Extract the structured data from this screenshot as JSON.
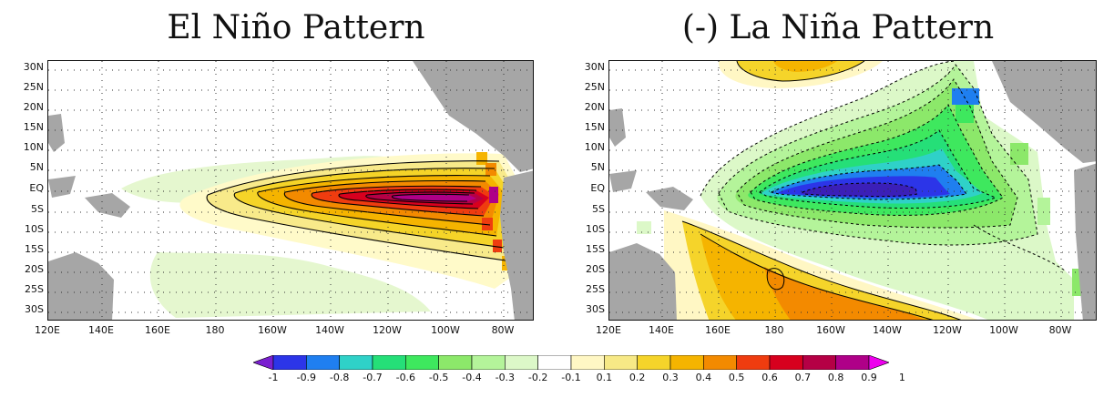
{
  "titles": {
    "left": "El Niño Pattern",
    "right": "(-) La Niña Pattern"
  },
  "map": {
    "lat_labels": [
      "30N",
      "25N",
      "20N",
      "15N",
      "10N",
      "5N",
      "EQ",
      "5S",
      "10S",
      "15S",
      "20S",
      "25S",
      "30S"
    ],
    "lon_labels": [
      "120E",
      "140E",
      "160E",
      "180",
      "160W",
      "140W",
      "120W",
      "100W",
      "80W"
    ],
    "land_color": "#a6a6a6",
    "contour_color": "#000000",
    "grid": "dotted"
  },
  "colorbar": {
    "labels": [
      "-1",
      "-0.9",
      "-0.8",
      "-0.7",
      "-0.6",
      "-0.5",
      "-0.4",
      "-0.3",
      "-0.2",
      "-0.1",
      "0.1",
      "0.2",
      "0.3",
      "0.4",
      "0.5",
      "0.6",
      "0.7",
      "0.8",
      "0.9",
      "1"
    ],
    "colors": [
      "#7a1fd0",
      "#2c35e8",
      "#1f7ff0",
      "#2fd1c8",
      "#25df78",
      "#3ee85e",
      "#8ce86a",
      "#b4f49a",
      "#dcf8c8",
      "#ffffff",
      "#fff7c4",
      "#f7e986",
      "#f5d42a",
      "#f5b400",
      "#f38a00",
      "#ef3c0f",
      "#d7001e",
      "#b50045",
      "#af0088",
      "#ee00ee"
    ]
  }
}
